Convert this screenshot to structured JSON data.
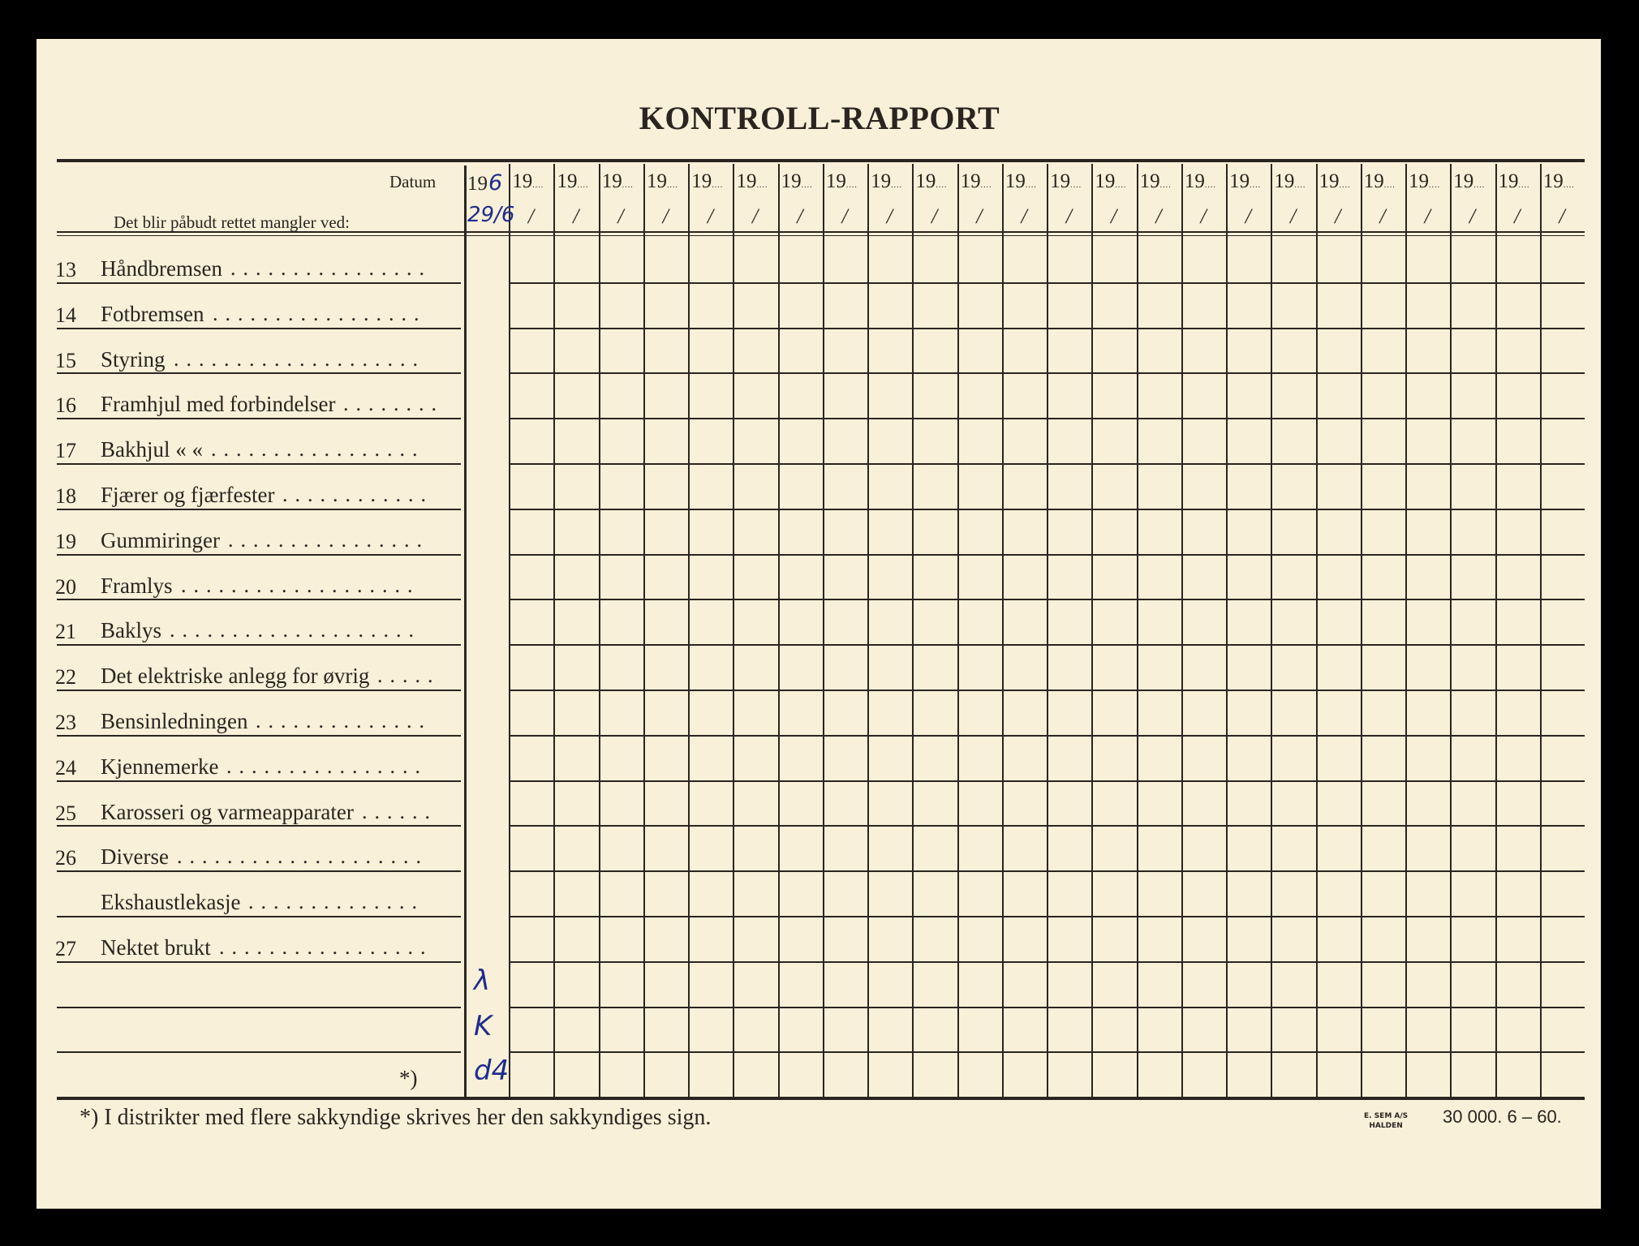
{
  "title": "KONTROLL-RAPPORT",
  "header": {
    "datum_label": "Datum",
    "instruction": "Det blir påbudt rettet mangler ved:",
    "year_prefix": "19",
    "column_count": 25
  },
  "items": [
    {
      "number": "13",
      "label": "Håndbremsen"
    },
    {
      "number": "14",
      "label": "Fotbremsen"
    },
    {
      "number": "15",
      "label": "Styring"
    },
    {
      "number": "16",
      "label": "Framhjul med forbindelser"
    },
    {
      "number": "17",
      "label": "Bakhjul    «        «"
    },
    {
      "number": "18",
      "label": "Fjærer og fjærfester"
    },
    {
      "number": "19",
      "label": "Gummiringer"
    },
    {
      "number": "20",
      "label": "Framlys"
    },
    {
      "number": "21",
      "label": "Baklys"
    },
    {
      "number": "22",
      "label": "Det elektriske anlegg for øvrig"
    },
    {
      "number": "23",
      "label": "Bensinledningen"
    },
    {
      "number": "24",
      "label": "Kjennemerke"
    },
    {
      "number": "25",
      "label": "Karosseri og varmeapparater"
    },
    {
      "number": "26",
      "label": "Diverse"
    },
    {
      "number": "",
      "label": "Ekshaustlekasje"
    },
    {
      "number": "27",
      "label": "Nektet brukt"
    }
  ],
  "blank_rows": 3,
  "signature_marker": "*)",
  "handwritten": {
    "year_suffix": "6",
    "date": "29/6",
    "signature_lines": [
      "λ",
      "K",
      "d4"
    ]
  },
  "footer": {
    "footnote": "*)  I distrikter med flere sakkyndige skrives her den sakkyndiges sign.",
    "printer_line1": "E. SEM A/S",
    "printer_line2": "HALDEN",
    "print_info": "30 000.   6 – 60."
  },
  "colors": {
    "paper": "#f8f0d8",
    "ink": "#2a2520",
    "pen": "#1f2d8a"
  }
}
